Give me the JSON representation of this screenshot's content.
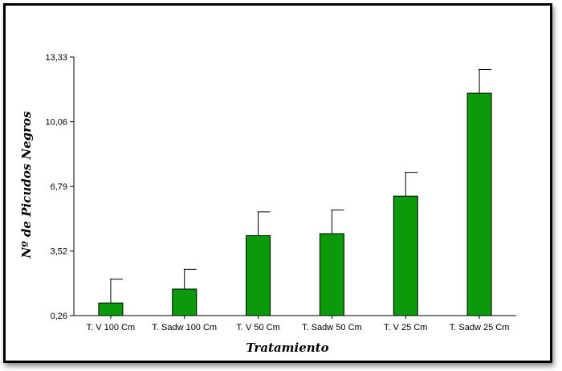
{
  "chart_data": {
    "type": "bar",
    "title": "",
    "xlabel": "Tratamiento",
    "ylabel": "Nº de Picudos Negros",
    "categories": [
      "T. V 100 Cm",
      "T. Sadw 100 Cm",
      "T. V 50 Cm",
      "T. Sadw 50 Cm",
      "T. V 25 Cm",
      "T. Sadw 25 Cm"
    ],
    "series": [
      {
        "values": [
          0.9,
          1.6,
          4.3,
          4.4,
          6.3,
          11.5
        ],
        "error_upper": [
          2.1,
          2.6,
          5.5,
          5.6,
          7.5,
          12.7
        ]
      }
    ],
    "yticks": [
      0.26,
      3.52,
      6.79,
      10.06,
      13.33
    ],
    "ytick_labels": [
      "0,26",
      "3,52",
      "6,79",
      "10,06",
      "13,33"
    ],
    "ylim": [
      0.26,
      13.33
    ],
    "grid": false,
    "colors": {
      "bar": "#0a9a0a",
      "bar_edge": "#000000",
      "axis": "#000000"
    }
  }
}
